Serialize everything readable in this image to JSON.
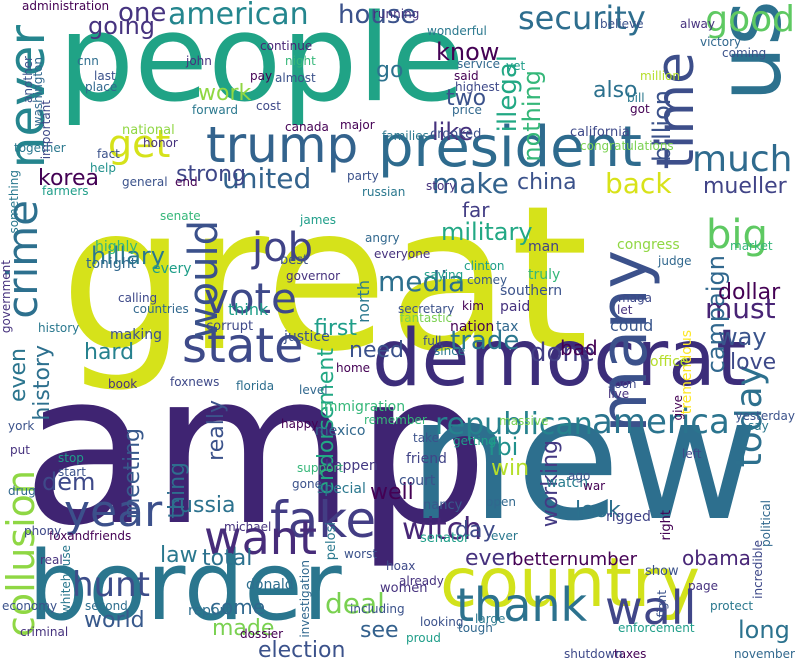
{
  "words": [
    {
      "text": "great",
      "color": "#d6e21a"
    },
    {
      "text": "amp",
      "color": "#3f2472"
    },
    {
      "text": "new",
      "color": "#2d6f8e"
    },
    {
      "text": "people",
      "color": "#20a386"
    },
    {
      "text": "border",
      "color": "#2a768e"
    },
    {
      "text": "democrat",
      "color": "#3c2d7a"
    },
    {
      "text": "country",
      "color": "#d2e21b"
    },
    {
      "text": "president",
      "color": "#2e6b8e"
    },
    {
      "text": "trump",
      "color": "#33638d"
    },
    {
      "text": "us",
      "color": "#2c718e"
    },
    {
      "text": "state",
      "color": "#3e4a89"
    },
    {
      "text": "fake",
      "color": "#433d84"
    },
    {
      "text": "many",
      "color": "#3b518b"
    },
    {
      "text": "want",
      "color": "#472c7a"
    },
    {
      "text": "thank",
      "color": "#2c728e"
    },
    {
      "text": "time",
      "color": "#3d4e8a"
    },
    {
      "text": "wall",
      "color": "#404688"
    },
    {
      "text": "vote",
      "color": "#3e4989"
    },
    {
      "text": "year",
      "color": "#3c508b"
    },
    {
      "text": "america",
      "color": "#2b748e"
    },
    {
      "text": "never",
      "color": "#25858e"
    },
    {
      "text": "get",
      "color": "#d5e21a"
    },
    {
      "text": "big",
      "color": "#5ec962"
    },
    {
      "text": "good",
      "color": "#5ec962"
    },
    {
      "text": "much",
      "color": "#2f6b8e"
    },
    {
      "text": "american",
      "color": "#24868e"
    },
    {
      "text": "job",
      "color": "#404387"
    },
    {
      "text": "would",
      "color": "#3b518b"
    },
    {
      "text": "security",
      "color": "#2e6e8e"
    },
    {
      "text": "crime",
      "color": "#2d708e"
    },
    {
      "text": "republican",
      "color": "#26828e"
    },
    {
      "text": "collusion",
      "color": "#8fd744"
    },
    {
      "text": "hunt",
      "color": "#3d4d8a"
    },
    {
      "text": "today",
      "color": "#2d708e"
    },
    {
      "text": "witch",
      "color": "#482777"
    },
    {
      "text": "house",
      "color": "#3b528b"
    },
    {
      "text": "one",
      "color": "#463480"
    },
    {
      "text": "going",
      "color": "#46337f"
    },
    {
      "text": "united",
      "color": "#33638d"
    },
    {
      "text": "must",
      "color": "#482475"
    },
    {
      "text": "media",
      "color": "#2d708e"
    },
    {
      "text": "trade",
      "color": "#2a778e"
    },
    {
      "text": "done",
      "color": "#433e85"
    },
    {
      "text": "deal",
      "color": "#7ad151"
    },
    {
      "text": "back",
      "color": "#d8e219"
    },
    {
      "text": "make",
      "color": "#33638d"
    },
    {
      "text": "illegal",
      "color": "#22a884"
    },
    {
      "text": "nothing",
      "color": "#35b779"
    },
    {
      "text": "know",
      "color": "#440154"
    },
    {
      "text": "like",
      "color": "#46327e"
    },
    {
      "text": "military",
      "color": "#22a884"
    },
    {
      "text": "hillary",
      "color": "#2a788e"
    },
    {
      "text": "fbi",
      "color": "#21918c"
    },
    {
      "text": "win",
      "color": "#b5de2b"
    },
    {
      "text": "campaign",
      "color": "#31688e"
    },
    {
      "text": "billion",
      "color": "#3b528b"
    },
    {
      "text": "mueller",
      "color": "#414487"
    },
    {
      "text": "china",
      "color": "#3b528b"
    },
    {
      "text": "russia",
      "color": "#2c728e"
    },
    {
      "text": "korea",
      "color": "#440154"
    },
    {
      "text": "strong",
      "color": "#3f4788"
    },
    {
      "text": "work",
      "color": "#90d743"
    },
    {
      "text": "also",
      "color": "#2c718e"
    },
    {
      "text": "two",
      "color": "#3b528b"
    },
    {
      "text": "go",
      "color": "#2c728e"
    },
    {
      "text": "way",
      "color": "#3a548c"
    },
    {
      "text": "dollar",
      "color": "#440154"
    },
    {
      "text": "love",
      "color": "#3e4989"
    },
    {
      "text": "first",
      "color": "#1f9e89"
    },
    {
      "text": "need",
      "color": "#3b528b"
    },
    {
      "text": "hard",
      "color": "#26818e"
    },
    {
      "text": "even",
      "color": "#2b758e"
    },
    {
      "text": "history",
      "color": "#2d708e"
    },
    {
      "text": "dem",
      "color": "#3e4989"
    },
    {
      "text": "meeting",
      "color": "#38598c"
    },
    {
      "text": "really",
      "color": "#3b528b"
    },
    {
      "text": "thing",
      "color": "#2e6e8e"
    },
    {
      "text": "endorsement",
      "color": "#22a884"
    },
    {
      "text": "well",
      "color": "#440154"
    },
    {
      "text": "look",
      "color": "#2c718e"
    },
    {
      "text": "day",
      "color": "#3e4a89"
    },
    {
      "text": "working",
      "color": "#443a83"
    },
    {
      "text": "ever",
      "color": "#46327e"
    },
    {
      "text": "law",
      "color": "#2a788e"
    },
    {
      "text": "total",
      "color": "#2c718e"
    },
    {
      "text": "world",
      "color": "#38598c"
    },
    {
      "text": "made",
      "color": "#7ad151"
    },
    {
      "text": "election",
      "color": "#3b528b"
    },
    {
      "text": "see",
      "color": "#34618d"
    },
    {
      "text": "obama",
      "color": "#482677"
    },
    {
      "text": "betternumber",
      "color": "#440154"
    },
    {
      "text": "long",
      "color": "#2c728e"
    },
    {
      "text": "come",
      "color": "#31688e"
    },
    {
      "text": "report",
      "color": "#2e6e8e"
    },
    {
      "text": "donald",
      "color": "#2e6e8e"
    },
    {
      "text": "think",
      "color": "#1f9e89"
    },
    {
      "text": "every",
      "color": "#1f9e89"
    },
    {
      "text": "congress",
      "color": "#90d743"
    },
    {
      "text": "far",
      "color": "#433e85"
    },
    {
      "text": "bad",
      "color": "#440154"
    },
    {
      "text": "could",
      "color": "#39568c"
    },
    {
      "text": "tremendous",
      "color": "#fde725"
    },
    {
      "text": "office",
      "color": "#b5de2b"
    },
    {
      "text": "southern",
      "color": "#3b528b"
    },
    {
      "text": "paid",
      "color": "#46327e"
    },
    {
      "text": "immigration",
      "color": "#35b779"
    },
    {
      "text": "happen",
      "color": "#443983"
    },
    {
      "text": "special",
      "color": "#2a788e"
    },
    {
      "text": "mexico",
      "color": "#31688e"
    },
    {
      "text": "friend",
      "color": "#414487"
    },
    {
      "text": "court",
      "color": "#3b528b"
    },
    {
      "text": "nancy",
      "color": "#38598c"
    },
    {
      "text": "pelosi",
      "color": "#2a788e"
    },
    {
      "text": "women",
      "color": "#46327e"
    },
    {
      "text": "senator",
      "color": "#1f9e89"
    },
    {
      "text": "watch",
      "color": "#287c8e"
    },
    {
      "text": "rigged",
      "color": "#404387"
    },
    {
      "text": "show",
      "color": "#3b528b"
    },
    {
      "text": "right",
      "color": "#440154"
    },
    {
      "text": "north",
      "color": "#2a788e"
    },
    {
      "text": "tax",
      "color": "#31688e"
    },
    {
      "text": "nation",
      "color": "#440154"
    },
    {
      "text": "fantastic",
      "color": "#7ad151"
    },
    {
      "text": "justice",
      "color": "#3b528b"
    },
    {
      "text": "corrupt",
      "color": "#3e4989"
    },
    {
      "text": "making",
      "color": "#3b528b"
    },
    {
      "text": "book",
      "color": "#46327e"
    },
    {
      "text": "florida",
      "color": "#2e6e8e"
    },
    {
      "text": "foxnews",
      "color": "#3e4989"
    },
    {
      "text": "tonight",
      "color": "#31688e"
    },
    {
      "text": "highly",
      "color": "#35b779"
    },
    {
      "text": "best",
      "color": "#3b528b"
    },
    {
      "text": "james",
      "color": "#1f9e89"
    },
    {
      "text": "angry",
      "color": "#31688e"
    },
    {
      "text": "everyone",
      "color": "#46327e"
    },
    {
      "text": "clinton",
      "color": "#1f9e89"
    },
    {
      "text": "comey",
      "color": "#38598c"
    },
    {
      "text": "man",
      "color": "#414487"
    },
    {
      "text": "truly",
      "color": "#35b779"
    },
    {
      "text": "california",
      "color": "#3e4989"
    },
    {
      "text": "congratulations",
      "color": "#7ad151"
    },
    {
      "text": "crooked",
      "color": "#3b528b"
    },
    {
      "text": "families",
      "color": "#2a788e"
    },
    {
      "text": "major",
      "color": "#440154"
    },
    {
      "text": "national",
      "color": "#90d743"
    },
    {
      "text": "honor",
      "color": "#46327e"
    },
    {
      "text": "fact",
      "color": "#3b528b"
    },
    {
      "text": "help",
      "color": "#21918c"
    },
    {
      "text": "together",
      "color": "#2a788e"
    },
    {
      "text": "farmers",
      "color": "#1f9e89"
    },
    {
      "text": "administration",
      "color": "#440154"
    },
    {
      "text": "cnn",
      "color": "#2e6e8e"
    },
    {
      "text": "last",
      "color": "#3b528b"
    },
    {
      "text": "place",
      "color": "#31688e"
    },
    {
      "text": "john",
      "color": "#46327e"
    },
    {
      "text": "night",
      "color": "#35b779"
    },
    {
      "text": "continue",
      "color": "#482475"
    },
    {
      "text": "almost",
      "color": "#3b528b"
    },
    {
      "text": "wonderful",
      "color": "#2a788e"
    },
    {
      "text": "said",
      "color": "#440154"
    },
    {
      "text": "service",
      "color": "#31688e"
    },
    {
      "text": "highest",
      "color": "#3e4989"
    },
    {
      "text": "running",
      "color": "#46327e"
    },
    {
      "text": "believe",
      "color": "#3b528b"
    },
    {
      "text": "bill",
      "color": "#2a788e"
    },
    {
      "text": "got",
      "color": "#440154"
    },
    {
      "text": "million",
      "color": "#b5de2b"
    },
    {
      "text": "economy",
      "color": "#3b528b"
    },
    {
      "text": "criminal",
      "color": "#46327e"
    },
    {
      "text": "whitehouse",
      "color": "#2a788e"
    },
    {
      "text": "foxandfriends",
      "color": "#440154"
    },
    {
      "text": "phony",
      "color": "#3e4989"
    },
    {
      "text": "drug",
      "color": "#31688e"
    },
    {
      "text": "stop",
      "color": "#1f9e89"
    },
    {
      "text": "start",
      "color": "#3b528b"
    },
    {
      "text": "real",
      "color": "#46327e"
    },
    {
      "text": "second",
      "color": "#2e6e8e"
    },
    {
      "text": "including",
      "color": "#3b528b"
    },
    {
      "text": "investigation",
      "color": "#31688e"
    },
    {
      "text": "dossier",
      "color": "#440154"
    },
    {
      "text": "hoax",
      "color": "#3e4989"
    },
    {
      "text": "already",
      "color": "#46327e"
    },
    {
      "text": "large",
      "color": "#2a788e"
    },
    {
      "text": "looking",
      "color": "#3b528b"
    },
    {
      "text": "tough",
      "color": "#31688e"
    },
    {
      "text": "enforcement",
      "color": "#1f9e89"
    },
    {
      "text": "remember",
      "color": "#35b779"
    },
    {
      "text": "take",
      "color": "#3b528b"
    },
    {
      "text": "getting",
      "color": "#1f9e89"
    },
    {
      "text": "massive",
      "color": "#7ad151"
    },
    {
      "text": "happy",
      "color": "#440154"
    },
    {
      "text": "support",
      "color": "#35b779"
    },
    {
      "text": "gone",
      "color": "#3b528b"
    },
    {
      "text": "governor",
      "color": "#46327e"
    },
    {
      "text": "calling",
      "color": "#3e4989"
    },
    {
      "text": "countries",
      "color": "#31688e"
    },
    {
      "text": "history",
      "color": "#2a788e"
    },
    {
      "text": "secretary",
      "color": "#3b528b"
    },
    {
      "text": "saying",
      "color": "#1f9e89"
    },
    {
      "text": "kim",
      "color": "#440154"
    },
    {
      "text": "maga",
      "color": "#3e4989"
    },
    {
      "text": "let",
      "color": "#46327e"
    },
    {
      "text": "judge",
      "color": "#31688e"
    },
    {
      "text": "market",
      "color": "#35b779"
    },
    {
      "text": "yesterday",
      "color": "#3b528b"
    },
    {
      "text": "say",
      "color": "#2a788e"
    },
    {
      "text": "give",
      "color": "#440154"
    },
    {
      "text": "political",
      "color": "#31688e"
    },
    {
      "text": "incredible",
      "color": "#3e4989"
    },
    {
      "text": "page",
      "color": "#46327e"
    },
    {
      "text": "protect",
      "color": "#2a788e"
    },
    {
      "text": "fight",
      "color": "#3b528b"
    },
    {
      "text": "november",
      "color": "#31688e"
    },
    {
      "text": "taxes",
      "color": "#440154"
    },
    {
      "text": "shutdown",
      "color": "#3e4989"
    },
    {
      "text": "proud",
      "color": "#1f9e89"
    },
    {
      "text": "story",
      "color": "#46327e"
    },
    {
      "text": "party",
      "color": "#3b528b"
    },
    {
      "text": "russian",
      "color": "#2a788e"
    },
    {
      "text": "pay",
      "color": "#440154"
    },
    {
      "text": "important",
      "color": "#3e4989"
    },
    {
      "text": "washington",
      "color": "#31688e"
    },
    {
      "text": "another",
      "color": "#3b528b"
    },
    {
      "text": "government",
      "color": "#46327e"
    },
    {
      "text": "something",
      "color": "#2a788e"
    },
    {
      "text": "senate",
      "color": "#35b779"
    },
    {
      "text": "general",
      "color": "#3b528b"
    },
    {
      "text": "end",
      "color": "#440154"
    },
    {
      "text": "victory",
      "color": "#31688e"
    },
    {
      "text": "coming",
      "color": "#3b528b"
    },
    {
      "text": "alway",
      "color": "#46327e"
    },
    {
      "text": "forward",
      "color": "#2a788e"
    },
    {
      "text": "cost",
      "color": "#3e4989"
    },
    {
      "text": "canada",
      "color": "#440154"
    },
    {
      "text": "price",
      "color": "#31688e"
    },
    {
      "text": "yet",
      "color": "#1f9e89"
    },
    {
      "text": "york",
      "color": "#3b528b"
    },
    {
      "text": "put",
      "color": "#46327e"
    },
    {
      "text": "full",
      "color": "#3b528b"
    },
    {
      "text": "since",
      "color": "#2a788e"
    },
    {
      "text": "level",
      "color": "#31688e"
    },
    {
      "text": "home",
      "color": "#440154"
    },
    {
      "text": "soon",
      "color": "#3e4989"
    },
    {
      "text": "live",
      "color": "#46327e"
    },
    {
      "text": "ago",
      "color": "#3b528b"
    },
    {
      "text": "ever",
      "color": "#2a788e"
    },
    {
      "text": "open",
      "color": "#31688e"
    },
    {
      "text": "war",
      "color": "#440154"
    },
    {
      "text": "left",
      "color": "#3e4989"
    },
    {
      "text": "michael",
      "color": "#46327e"
    },
    {
      "text": "worst",
      "color": "#3b528b"
    }
  ]
}
